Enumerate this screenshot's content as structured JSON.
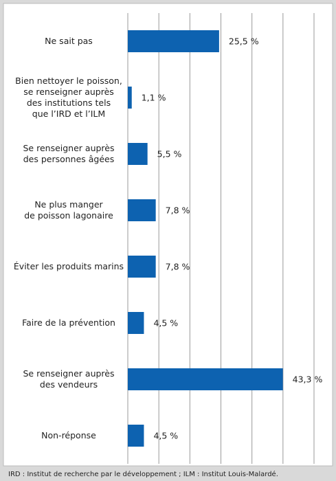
{
  "chart_data": {
    "type": "barh",
    "categories": [
      [
        "Ne sait pas"
      ],
      [
        "Bien nettoyer le poisson,",
        "se renseigner auprès",
        "des institutions tels",
        "que l’IRD et l’ILM"
      ],
      [
        "Se renseigner auprès",
        "des personnes âgées"
      ],
      [
        "Ne plus manger",
        "de poisson lagonaire"
      ],
      [
        "Éviter les produits marins"
      ],
      [
        "Faire de la prévention"
      ],
      [
        "Se renseigner auprès",
        "des vendeurs"
      ],
      [
        "Non-réponse"
      ]
    ],
    "values": [
      25.5,
      1.1,
      5.5,
      7.8,
      7.8,
      4.5,
      43.3,
      4.5
    ],
    "value_labels": [
      "25,5 %",
      "1,1 %",
      "5,5 %",
      "7,8 %",
      "7,8 %",
      "4,5 %",
      "43,3 %",
      "4,5 %"
    ],
    "color": "#0d62b0",
    "xlim": [
      0,
      52
    ],
    "grid": true,
    "footnote": "IRD : Institut de recherche par le développement ; ILM : Institut Louis-Malardé."
  }
}
